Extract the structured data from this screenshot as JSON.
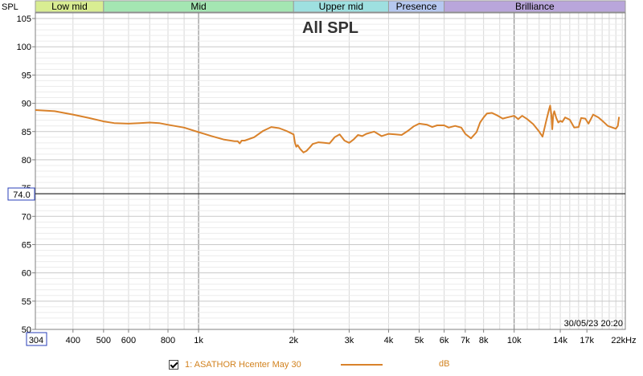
{
  "chart_data": {
    "type": "line",
    "title": "All SPL",
    "ylabel": "SPL",
    "xlabel": "",
    "x_unit_label": "22kHz",
    "x_scale": "log",
    "xlim": [
      304,
      22500
    ],
    "ylim": [
      50,
      106
    ],
    "grid": true,
    "timestamp": "30/05/23 20:20",
    "reference_line": {
      "value": 74.0,
      "label": "74.0"
    },
    "x_start_label": "304",
    "x_ticks": [
      {
        "value": 400,
        "label": "400"
      },
      {
        "value": 500,
        "label": "500"
      },
      {
        "value": 600,
        "label": "600"
      },
      {
        "value": 800,
        "label": "800"
      },
      {
        "value": 1000,
        "label": "1k"
      },
      {
        "value": 2000,
        "label": "2k"
      },
      {
        "value": 3000,
        "label": "3k"
      },
      {
        "value": 4000,
        "label": "4k"
      },
      {
        "value": 5000,
        "label": "5k"
      },
      {
        "value": 6000,
        "label": "6k"
      },
      {
        "value": 7000,
        "label": "7k"
      },
      {
        "value": 8000,
        "label": "8k"
      },
      {
        "value": 10000,
        "label": "10k"
      },
      {
        "value": 14000,
        "label": "14k"
      },
      {
        "value": 17000,
        "label": "17k"
      }
    ],
    "y_ticks": [
      {
        "value": 105,
        "label": "105"
      },
      {
        "value": 100,
        "label": "100"
      },
      {
        "value": 95,
        "label": "95"
      },
      {
        "value": 90,
        "label": "90"
      },
      {
        "value": 85,
        "label": "85"
      },
      {
        "value": 80,
        "label": "80"
      },
      {
        "value": 75,
        "label": "75"
      },
      {
        "value": 70,
        "label": "70"
      },
      {
        "value": 65,
        "label": "65"
      },
      {
        "value": 60,
        "label": "60"
      },
      {
        "value": 55,
        "label": "55"
      },
      {
        "value": 50,
        "label": "50"
      }
    ],
    "bands": [
      {
        "label": "Low mid",
        "from": 304,
        "to": 500,
        "color": "#d9ed92"
      },
      {
        "label": "Mid",
        "from": 500,
        "to": 2000,
        "color": "#a4e6b2"
      },
      {
        "label": "Upper mid",
        "from": 2000,
        "to": 4000,
        "color": "#9ee0e0"
      },
      {
        "label": "Presence",
        "from": 4000,
        "to": 6000,
        "color": "#b6c8f0"
      },
      {
        "label": "Brilliance",
        "from": 6000,
        "to": 22500,
        "color": "#b9a6db"
      }
    ],
    "series": [
      {
        "name": "1: ASATHOR Hcenter May 30",
        "unit": "dB",
        "color": "#d9822b",
        "x": [
          304,
          350,
          400,
          450,
          500,
          540,
          600,
          650,
          700,
          750,
          800,
          900,
          1000,
          1100,
          1200,
          1300,
          1330,
          1350,
          1370,
          1400,
          1500,
          1600,
          1700,
          1800,
          1900,
          2000,
          2020,
          2040,
          2060,
          2100,
          2150,
          2200,
          2260,
          2300,
          2400,
          2500,
          2600,
          2700,
          2800,
          2900,
          3000,
          3100,
          3200,
          3300,
          3400,
          3500,
          3600,
          3700,
          3800,
          4000,
          4200,
          4400,
          4600,
          4800,
          5000,
          5300,
          5500,
          5700,
          6000,
          6200,
          6500,
          6800,
          7000,
          7300,
          7600,
          7800,
          8000,
          8200,
          8500,
          8800,
          9200,
          9500,
          10000,
          10300,
          10600,
          11000,
          11500,
          12000,
          12300,
          12600,
          12900,
          13000,
          13100,
          13200,
          13300,
          13400,
          13600,
          13800,
          14000,
          14200,
          14500,
          15000,
          15500,
          16000,
          16300,
          16800,
          17200,
          17800,
          18500,
          19200,
          19800,
          20500,
          21000,
          21300,
          21500
        ],
        "y": [
          88.8,
          88.6,
          88.0,
          87.4,
          86.8,
          86.5,
          86.4,
          86.5,
          86.6,
          86.5,
          86.2,
          85.7,
          84.9,
          84.2,
          83.6,
          83.3,
          83.3,
          82.9,
          83.4,
          83.4,
          84.0,
          85.1,
          85.8,
          85.6,
          85.1,
          84.5,
          83.0,
          82.3,
          82.6,
          81.9,
          81.3,
          81.6,
          82.3,
          82.8,
          83.1,
          83.0,
          82.9,
          84.0,
          84.5,
          83.4,
          83.0,
          83.6,
          84.4,
          84.2,
          84.6,
          84.8,
          85.0,
          84.6,
          84.2,
          84.6,
          84.5,
          84.4,
          85.1,
          85.9,
          86.4,
          86.2,
          85.8,
          86.1,
          86.1,
          85.7,
          86.0,
          85.7,
          84.6,
          83.8,
          84.9,
          86.6,
          87.5,
          88.2,
          88.3,
          87.9,
          87.3,
          87.5,
          87.8,
          87.2,
          87.8,
          87.2,
          86.3,
          85.0,
          84.1,
          86.6,
          88.9,
          89.6,
          88.2,
          85.4,
          87.9,
          88.6,
          87.4,
          86.6,
          86.9,
          86.7,
          87.5,
          87.1,
          85.7,
          85.8,
          87.4,
          87.3,
          86.4,
          88.0,
          87.5,
          86.7,
          86.0,
          85.7,
          85.5,
          86.0,
          87.6
        ]
      }
    ]
  }
}
